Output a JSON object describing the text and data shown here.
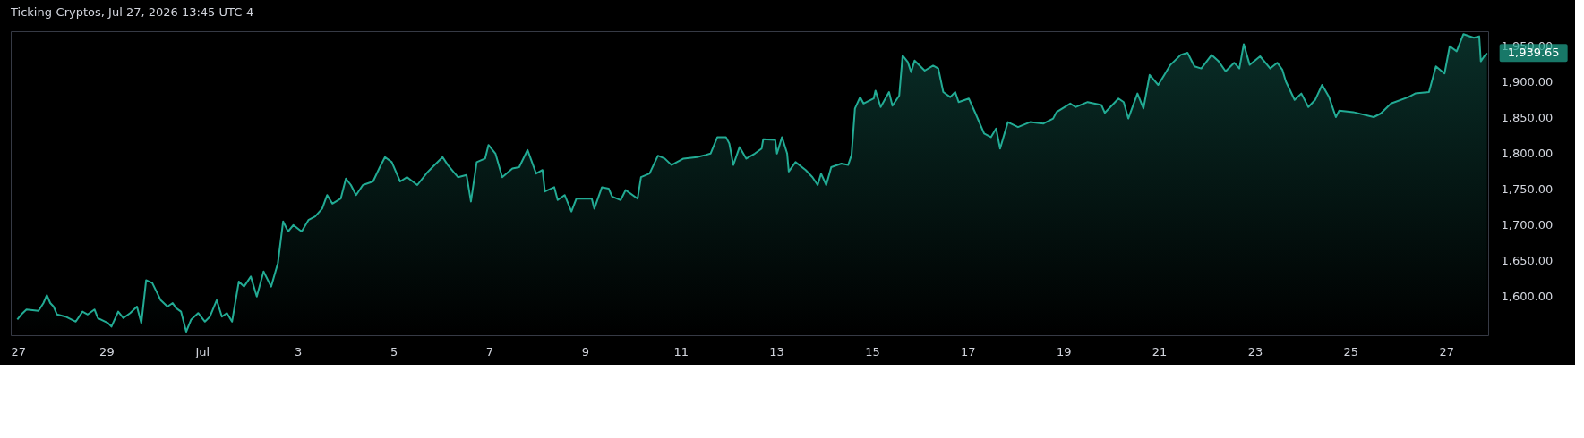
{
  "chart_data": {
    "type": "area",
    "title": "Ticking-Cryptos, Jul 27, 2026 13:45 UTC-4",
    "x": [
      "2026-06-27T03:18",
      "2026-06-27T05:18",
      "2026-06-27T07:54",
      "2026-06-27T13:54",
      "2026-06-27T16:24",
      "2026-06-27T18:06",
      "2026-06-27T19:48",
      "2026-06-27T21:30",
      "2026-06-27T23:12",
      "2026-06-28T03:30",
      "2026-06-28T08:36",
      "2026-06-28T12:00",
      "2026-06-28T14:36",
      "2026-06-28T18:00",
      "2026-06-28T19:42",
      "2026-06-29T00:48",
      "2026-06-29T02:30",
      "2026-06-29T05:54",
      "2026-06-29T08:30",
      "2026-06-29T11:54",
      "2026-06-29T15:18",
      "2026-06-29T17:30",
      "2026-06-29T19:54",
      "2026-06-29T23:00",
      "2026-06-30T03:12",
      "2026-06-30T06:36",
      "2026-06-30T09:12",
      "2026-06-30T10:54",
      "2026-06-30T13:24",
      "2026-06-30T16:00",
      "2026-06-30T18:30",
      "2026-06-30T22:00",
      "2026-07-01T01:24",
      "2026-07-01T03:54",
      "2026-07-01T07:18",
      "2026-07-01T09:54",
      "2026-07-01T12:24",
      "2026-07-01T15:00",
      "2026-07-01T18:24",
      "2026-07-01T21:00",
      "2026-07-02T00:24",
      "2026-07-02T03:24",
      "2026-07-02T06:48",
      "2026-07-02T10:36",
      "2026-07-02T14:00",
      "2026-07-02T16:36",
      "2026-07-02T19:06",
      "2026-07-02T21:42",
      "2026-07-03T01:54",
      "2026-07-03T05:18",
      "2026-07-03T08:42",
      "2026-07-03T12:12",
      "2026-07-03T14:42",
      "2026-07-03T17:18",
      "2026-07-03T21:30",
      "2026-07-04T00:06",
      "2026-07-04T02:36",
      "2026-07-04T05:12",
      "2026-07-04T08:36",
      "2026-07-04T13:42",
      "2026-07-04T17:06",
      "2026-07-04T19:42",
      "2026-07-04T23:06",
      "2026-07-05T03:18",
      "2026-07-05T06:48",
      "2026-07-05T11:54",
      "2026-07-05T17:00",
      "2026-07-05T19:30",
      "2026-07-06T00:36",
      "2026-07-06T03:12",
      "2026-07-06T08:18",
      "2026-07-06T12:36",
      "2026-07-06T14:48",
      "2026-07-06T17:42",
      "2026-07-06T21:54",
      "2026-07-06T23:36",
      "2026-07-07T03:06",
      "2026-07-07T06:30",
      "2026-07-07T11:36",
      "2026-07-07T15:00",
      "2026-07-07T19:12",
      "2026-07-07T23:30",
      "2026-07-08T02:42",
      "2026-07-08T03:54",
      "2026-07-08T08:36",
      "2026-07-08T10:18",
      "2026-07-08T13:48",
      "2026-07-08T17:12",
      "2026-07-08T19:42",
      "2026-07-09T03:24",
      "2026-07-09T04:42",
      "2026-07-09T08:30",
      "2026-07-09T11:54",
      "2026-07-09T13:36",
      "2026-07-09T17:54",
      "2026-07-09T20:24",
      "2026-07-10T02:24",
      "2026-07-10T04:06",
      "2026-07-10T08:24",
      "2026-07-10T12:36",
      "2026-07-10T16:00",
      "2026-07-10T19:24",
      "2026-07-11T01:24",
      "2026-07-11T08:12",
      "2026-07-11T12:30",
      "2026-07-11T15:00",
      "2026-07-11T18:24",
      "2026-07-11T22:42",
      "2026-07-12T00:24",
      "2026-07-12T02:24",
      "2026-07-12T05:30",
      "2026-07-12T08:54",
      "2026-07-12T13:12",
      "2026-07-12T16:36",
      "2026-07-12T17:24",
      "2026-07-12T23:24",
      "2026-07-13T00:18",
      "2026-07-13T02:48",
      "2026-07-13T05:24",
      "2026-07-13T06:12",
      "2026-07-13T09:36",
      "2026-07-13T14:42",
      "2026-07-13T18:06",
      "2026-07-13T20:42",
      "2026-07-13T22:24",
      "2026-07-14T01:00",
      "2026-07-14T03:30",
      "2026-07-14T08:36",
      "2026-07-14T12:00",
      "2026-07-14T13:42",
      "2026-07-14T15:24",
      "2026-07-14T18:00",
      "2026-07-14T19:42",
      "2026-07-15T00:48",
      "2026-07-15T01:42",
      "2026-07-15T04:18",
      "2026-07-15T08:30",
      "2026-07-15T10:12",
      "2026-07-15T13:36",
      "2026-07-15T15:18",
      "2026-07-15T17:54",
      "2026-07-15T19:36",
      "2026-07-15T21:18",
      "2026-07-16T02:24",
      "2026-07-16T06:36",
      "2026-07-16T09:12",
      "2026-07-16T11:42",
      "2026-07-16T15:12",
      "2026-07-16T17:42",
      "2026-07-16T19:24",
      "2026-07-17T00:30",
      "2026-07-17T03:54",
      "2026-07-17T08:12",
      "2026-07-17T11:36",
      "2026-07-17T14:12",
      "2026-07-17T16:12",
      "2026-07-17T20:06",
      "2026-07-18T01:12",
      "2026-07-18T07:12",
      "2026-07-18T14:00",
      "2026-07-18T18:48",
      "2026-07-18T20:30",
      "2026-07-19T03:24",
      "2026-07-19T06:00",
      "2026-07-19T12:06",
      "2026-07-19T19:00",
      "2026-07-19T20:42",
      "2026-07-20T03:36",
      "2026-07-20T06:12",
      "2026-07-20T08:30",
      "2026-07-20T13:06",
      "2026-07-20T16:06",
      "2026-07-20T19:12",
      "2026-07-20T23:30",
      "2026-07-21T03:00",
      "2026-07-21T05:36",
      "2026-07-21T10:48",
      "2026-07-21T14:12",
      "2026-07-21T17:42",
      "2026-07-21T21:06",
      "2026-07-22T02:18",
      "2026-07-22T05:48",
      "2026-07-22T09:18",
      "2026-07-22T13:36",
      "2026-07-22T16:12",
      "2026-07-22T18:24",
      "2026-07-22T21:24",
      "2026-07-23T02:36",
      "2026-07-23T07:42",
      "2026-07-23T11:12",
      "2026-07-23T13:48",
      "2026-07-23T15:30",
      "2026-07-23T19:54",
      "2026-07-23T23:18",
      "2026-07-24T02:48",
      "2026-07-24T06:12",
      "2026-07-24T09:42",
      "2026-07-24T13:12",
      "2026-07-24T16:36",
      "2026-07-24T18:18",
      "2026-07-25T01:18",
      "2026-07-25T11:36",
      "2026-07-25T15:06",
      "2026-07-25T20:18",
      "2026-07-26T05:00",
      "2026-07-26T08:24",
      "2026-07-26T15:18",
      "2026-07-26T18:48",
      "2026-07-26T23:06",
      "2026-07-27T01:42",
      "2026-07-27T05:12",
      "2026-07-27T08:36",
      "2026-07-27T13:48",
      "2026-07-27T16:30",
      "2026-07-27T17:18",
      "2026-07-27T19:00",
      "2026-07-27T20:24"
    ],
    "series": [
      {
        "color": "#22ab94",
        "values": [
          1567,
          1574,
          1581,
          1579,
          1590,
          1601,
          1590,
          1585,
          1574,
          1571,
          1564,
          1578,
          1574,
          1581,
          1569,
          1562,
          1557,
          1578,
          1569,
          1576,
          1585,
          1562,
          1622,
          1618,
          1594,
          1585,
          1590,
          1583,
          1578,
          1550,
          1567,
          1576,
          1564,
          1571,
          1594,
          1571,
          1576,
          1564,
          1620,
          1613,
          1627,
          1599,
          1634,
          1613,
          1646,
          1704,
          1690,
          1699,
          1690,
          1706,
          1711,
          1722,
          1741,
          1729,
          1736,
          1764,
          1755,
          1741,
          1755,
          1760,
          1780,
          1794,
          1787,
          1760,
          1766,
          1755,
          1773,
          1780,
          1794,
          1783,
          1766,
          1769,
          1732,
          1787,
          1792,
          1811,
          1799,
          1766,
          1778,
          1780,
          1804,
          1771,
          1776,
          1746,
          1752,
          1734,
          1741,
          1718,
          1736,
          1736,
          1722,
          1752,
          1750,
          1739,
          1734,
          1748,
          1736,
          1766,
          1771,
          1796,
          1792,
          1783,
          1792,
          1794,
          1797,
          1799,
          1822,
          1822,
          1813,
          1783,
          1808,
          1792,
          1799,
          1806,
          1819,
          1818,
          1799,
          1822,
          1799,
          1774,
          1787,
          1776,
          1766,
          1755,
          1771,
          1755,
          1780,
          1785,
          1783,
          1797,
          1862,
          1878,
          1869,
          1876,
          1887,
          1864,
          1885,
          1866,
          1880,
          1936,
          1927,
          1913,
          1929,
          1915,
          1922,
          1918,
          1885,
          1878,
          1885,
          1871,
          1876,
          1855,
          1827,
          1822,
          1834,
          1806,
          1843,
          1836,
          1843,
          1841,
          1848,
          1857,
          1869,
          1864,
          1871,
          1867,
          1856,
          1876,
          1871,
          1848,
          1883,
          1862,
          1909,
          1895,
          1911,
          1923,
          1937,
          1940,
          1921,
          1918,
          1937,
          1928,
          1914,
          1926,
          1918,
          1952,
          1923,
          1935,
          1918,
          1926,
          1916,
          1900,
          1874,
          1883,
          1864,
          1874,
          1895,
          1878,
          1850,
          1859,
          1857,
          1850,
          1855,
          1869,
          1878,
          1883,
          1885,
          1921,
          1911,
          1949,
          1942,
          1966,
          1961,
          1963,
          1928,
          1935,
          1939.65
        ]
      }
    ],
    "xlim": [
      "2026-06-27T00:00",
      "2026-07-27T21:00"
    ],
    "xticks": [
      {
        "value": "2026-06-27",
        "label": "27"
      },
      {
        "value": "2026-06-29",
        "label": "29"
      },
      {
        "value": "2026-07-01",
        "label": "Jul"
      },
      {
        "value": "2026-07-03",
        "label": "3"
      },
      {
        "value": "2026-07-05",
        "label": "5"
      },
      {
        "value": "2026-07-07",
        "label": "7"
      },
      {
        "value": "2026-07-09",
        "label": "9"
      },
      {
        "value": "2026-07-11",
        "label": "11"
      },
      {
        "value": "2026-07-13",
        "label": "13"
      },
      {
        "value": "2026-07-15",
        "label": "15"
      },
      {
        "value": "2026-07-17",
        "label": "17"
      },
      {
        "value": "2026-07-19",
        "label": "19"
      },
      {
        "value": "2026-07-21",
        "label": "21"
      },
      {
        "value": "2026-07-23",
        "label": "23"
      },
      {
        "value": "2026-07-25",
        "label": "25"
      },
      {
        "value": "2026-07-27",
        "label": "27"
      }
    ],
    "ylim": [
      1545,
      1970
    ],
    "yticks": [
      {
        "value": 1600,
        "label": "1,600.00"
      },
      {
        "value": 1650,
        "label": "1,650.00"
      },
      {
        "value": 1700,
        "label": "1,700.00"
      },
      {
        "value": 1750,
        "label": "1,750.00"
      },
      {
        "value": 1800,
        "label": "1,800.00"
      },
      {
        "value": 1850,
        "label": "1,850.00"
      },
      {
        "value": 1900,
        "label": "1,900.00"
      },
      {
        "value": 1950,
        "label": "1,950.00"
      }
    ],
    "annotations": [
      {
        "text": "1,939.65",
        "x": "2026-07-27T20:24",
        "y": 1939.65
      }
    ],
    "grid": false,
    "marker": "none",
    "line_style": "solid"
  }
}
